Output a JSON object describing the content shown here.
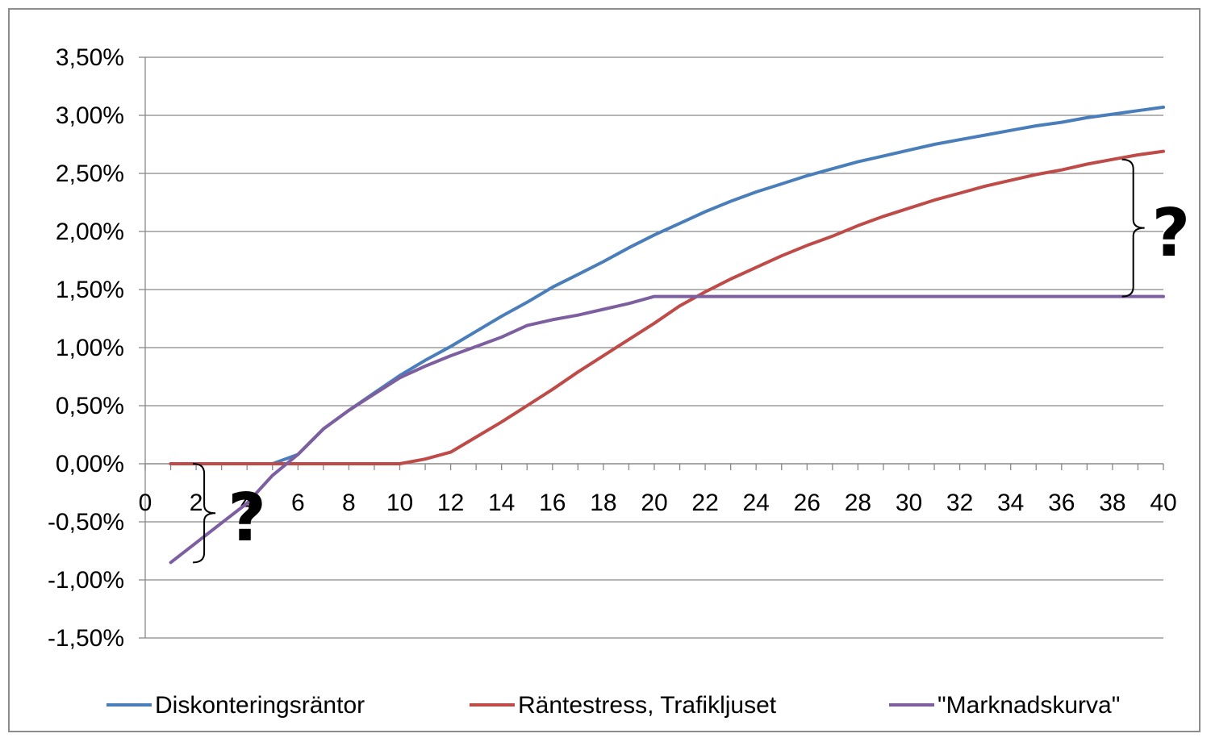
{
  "chart_data": {
    "type": "line",
    "title": "",
    "xlabel": "",
    "ylabel": "",
    "xlim": [
      0,
      40
    ],
    "ylim": [
      -1.5,
      3.5
    ],
    "x_ticks": [
      0,
      2,
      4,
      6,
      8,
      10,
      12,
      14,
      16,
      18,
      20,
      22,
      24,
      26,
      28,
      30,
      32,
      34,
      36,
      38,
      40
    ],
    "x_tick_labels": [
      "0",
      "2",
      "4",
      "6",
      "8",
      "10",
      "12",
      "14",
      "16",
      "18",
      "20",
      "22",
      "24",
      "26",
      "28",
      "30",
      "32",
      "34",
      "36",
      "38",
      "40"
    ],
    "y_ticks": [
      -1.5,
      -1.0,
      -0.5,
      0.0,
      0.5,
      1.0,
      1.5,
      2.0,
      2.5,
      3.0,
      3.5
    ],
    "y_tick_labels": [
      "-1,50%",
      "-1,00%",
      "-0,50%",
      "0,00%",
      "0,50%",
      "1,00%",
      "1,50%",
      "2,00%",
      "2,50%",
      "3,00%",
      "3,50%"
    ],
    "grid": true,
    "legend_position": "bottom",
    "x": [
      1,
      2,
      3,
      4,
      5,
      6,
      7,
      8,
      9,
      10,
      11,
      12,
      13,
      14,
      15,
      16,
      17,
      18,
      19,
      20,
      21,
      22,
      23,
      24,
      25,
      26,
      27,
      28,
      29,
      30,
      31,
      32,
      33,
      34,
      35,
      36,
      37,
      38,
      39,
      40
    ],
    "series": [
      {
        "name": "Diskonteringsräntor",
        "color": "#4a7ebb",
        "values": [
          0.0,
          0.0,
          0.0,
          0.0,
          0.0,
          0.08,
          0.3,
          0.46,
          0.61,
          0.76,
          0.89,
          1.01,
          1.14,
          1.27,
          1.39,
          1.52,
          1.63,
          1.74,
          1.86,
          1.97,
          2.07,
          2.17,
          2.26,
          2.34,
          2.41,
          2.48,
          2.54,
          2.6,
          2.65,
          2.7,
          2.75,
          2.79,
          2.83,
          2.87,
          2.91,
          2.94,
          2.98,
          3.01,
          3.04,
          3.07
        ]
      },
      {
        "name": "Räntestress, Trafikljuset",
        "color": "#be4b48",
        "values": [
          0.0,
          0.0,
          0.0,
          0.0,
          0.0,
          0.0,
          0.0,
          0.0,
          0.0,
          0.0,
          0.04,
          0.1,
          0.23,
          0.36,
          0.5,
          0.64,
          0.79,
          0.93,
          1.07,
          1.21,
          1.36,
          1.48,
          1.59,
          1.69,
          1.79,
          1.88,
          1.96,
          2.05,
          2.13,
          2.2,
          2.27,
          2.33,
          2.39,
          2.44,
          2.49,
          2.53,
          2.58,
          2.62,
          2.66,
          2.69
        ]
      },
      {
        "name": "\"Marknadskurva\"",
        "color": "#7d5fa0",
        "values": [
          -0.85,
          -0.68,
          -0.51,
          -0.34,
          -0.1,
          0.08,
          0.3,
          0.46,
          0.6,
          0.74,
          0.84,
          0.93,
          1.01,
          1.09,
          1.19,
          1.24,
          1.28,
          1.33,
          1.38,
          1.44,
          1.44,
          1.44,
          1.44,
          1.44,
          1.44,
          1.44,
          1.44,
          1.44,
          1.44,
          1.44,
          1.44,
          1.44,
          1.44,
          1.44,
          1.44,
          1.44,
          1.44,
          1.44,
          1.44,
          1.44
        ]
      }
    ],
    "annotations": [
      {
        "text": "?",
        "bracket_x": 2,
        "bracket_y_range": [
          -0.85,
          0.0
        ],
        "label_x": 4,
        "label_y": -0.45
      },
      {
        "text": "?",
        "bracket_x": 38.5,
        "bracket_y_range": [
          1.44,
          2.62
        ],
        "label_x": 40.3,
        "label_y": 2.0
      }
    ]
  }
}
